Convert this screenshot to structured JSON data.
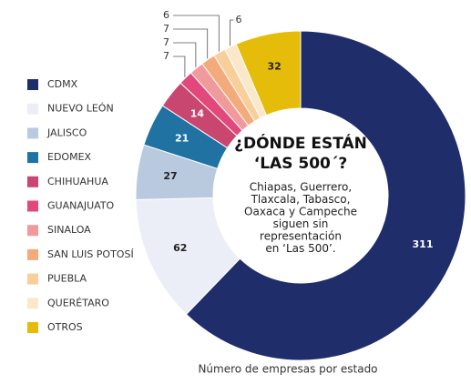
{
  "chart_data": {
    "type": "donut",
    "title": [
      "¿DÓNDE ESTÁN",
      "‘LAS 500´?"
    ],
    "note": [
      "Chiapas, Guerrero,",
      "Tlaxcala, Tabasco,",
      "Oaxaca y Campeche",
      "siguen sin",
      "representación",
      "en ‘Las 500’."
    ],
    "caption": "Número de empresas por estado",
    "categories": [
      "CDMX",
      "NUEVO LEÓN",
      "JALISCO",
      "EDOMEX",
      "CHIHUAHUA",
      "GUANAJUATO",
      "SINALOA",
      "SAN LUIS POTOSÍ",
      "PUEBLA",
      "QUERÉTARO",
      "OTROS"
    ],
    "values": [
      311,
      62,
      27,
      21,
      14,
      7,
      7,
      7,
      6,
      6,
      32
    ],
    "colors": [
      "#1f2d6b",
      "#eceef7",
      "#b9cadf",
      "#1f72a1",
      "#c8466f",
      "#e2487c",
      "#f19a9c",
      "#f3ab7b",
      "#f8cf9b",
      "#fbe8cb",
      "#e5bc0a"
    ]
  }
}
